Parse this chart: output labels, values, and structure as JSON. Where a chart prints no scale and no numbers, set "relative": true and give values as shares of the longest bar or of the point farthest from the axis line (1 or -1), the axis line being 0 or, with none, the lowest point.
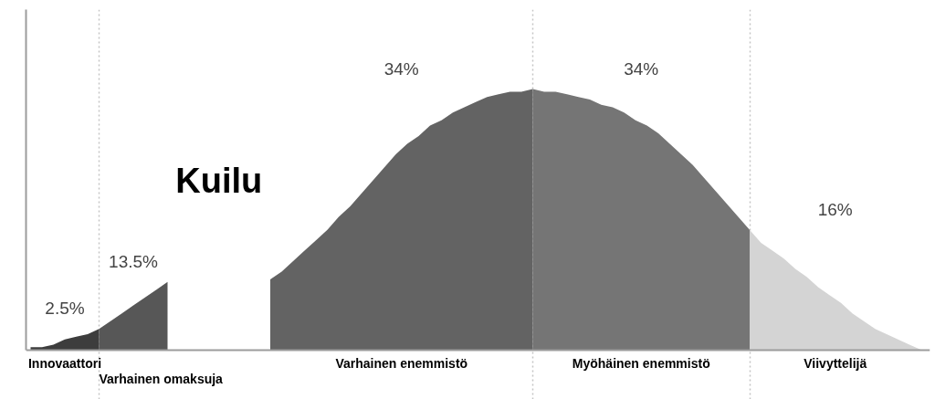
{
  "chart_data": {
    "type": "area",
    "relative": true,
    "grid": "x",
    "categories": [
      null,
      null,
      null,
      null,
      null,
      null,
      null,
      null,
      null,
      null,
      null,
      null,
      null,
      null,
      null,
      null,
      null,
      null,
      null,
      null,
      null,
      null,
      null,
      null,
      null,
      null,
      null,
      null,
      null,
      null,
      null,
      null,
      null,
      null,
      null,
      null,
      null,
      null,
      null,
      null,
      null,
      null,
      null,
      null,
      null,
      null,
      null,
      null,
      null,
      null,
      null,
      null,
      null,
      null,
      null,
      null,
      null,
      null,
      null,
      null,
      null,
      null,
      null,
      null,
      null,
      null,
      null,
      null,
      null,
      null,
      null,
      null,
      null,
      null,
      null,
      null,
      null,
      null,
      null
    ],
    "series": [
      {
        "name": "Innovaattori",
        "color": "#3d3d3d",
        "values": [
          0.01,
          0.01,
          0.02,
          0.04,
          0.05,
          0.06,
          0.08,
          null,
          null,
          null,
          null,
          null,
          null,
          null,
          null,
          null,
          null,
          null,
          null,
          null,
          null,
          null,
          null,
          null,
          null,
          null,
          null,
          null,
          null,
          null,
          null,
          null,
          null,
          null,
          null,
          null,
          null,
          null,
          null,
          null,
          null,
          null,
          null,
          null,
          null,
          null,
          null,
          null,
          null,
          null,
          null,
          null,
          null,
          null,
          null,
          null,
          null,
          null,
          null,
          null,
          null,
          null,
          null,
          null,
          null,
          null,
          null,
          null,
          null,
          null,
          null,
          null,
          null,
          null,
          null,
          null,
          null,
          null,
          null
        ]
      },
      {
        "name": "Varhainen omaksuja",
        "color": "#575757",
        "values": [
          null,
          null,
          null,
          null,
          null,
          null,
          0.08,
          0.11,
          0.14,
          0.17,
          0.2,
          0.23,
          0.26,
          null,
          null,
          null,
          null,
          null,
          null,
          null,
          null,
          null,
          null,
          null,
          null,
          null,
          null,
          null,
          null,
          null,
          null,
          null,
          null,
          null,
          null,
          null,
          null,
          null,
          null,
          null,
          null,
          null,
          null,
          null,
          null,
          null,
          null,
          null,
          null,
          null,
          null,
          null,
          null,
          null,
          null,
          null,
          null,
          null,
          null,
          null,
          null,
          null,
          null,
          null,
          null,
          null,
          null,
          null,
          null,
          null,
          null,
          null,
          null,
          null,
          null,
          null,
          null,
          null,
          null
        ]
      },
      {
        "name": "Varhainen enemmistö",
        "color": "#636363",
        "values": [
          null,
          null,
          null,
          null,
          null,
          null,
          null,
          null,
          null,
          null,
          null,
          null,
          null,
          null,
          null,
          null,
          null,
          null,
          null,
          null,
          null,
          0.27,
          0.3,
          0.34,
          0.38,
          0.42,
          0.46,
          0.51,
          0.55,
          0.6,
          0.65,
          0.7,
          0.75,
          0.79,
          0.82,
          0.86,
          0.88,
          0.91,
          0.93,
          0.95,
          0.97,
          0.98,
          0.99,
          0.99,
          1,
          null,
          null,
          null,
          null,
          null,
          null,
          null,
          null,
          null,
          null,
          null,
          null,
          null,
          null,
          null,
          null,
          null,
          null,
          null,
          null,
          null,
          null,
          null,
          null,
          null,
          null,
          null,
          null,
          null,
          null,
          null,
          null,
          null,
          null
        ]
      },
      {
        "name": "Myöhäinen enemmistö",
        "color": "#757575",
        "values": [
          null,
          null,
          null,
          null,
          null,
          null,
          null,
          null,
          null,
          null,
          null,
          null,
          null,
          null,
          null,
          null,
          null,
          null,
          null,
          null,
          null,
          null,
          null,
          null,
          null,
          null,
          null,
          null,
          null,
          null,
          null,
          null,
          null,
          null,
          null,
          null,
          null,
          null,
          null,
          null,
          null,
          null,
          null,
          null,
          1,
          0.99,
          0.99,
          0.98,
          0.97,
          0.96,
          0.94,
          0.93,
          0.91,
          0.88,
          0.86,
          0.83,
          0.79,
          0.75,
          0.71,
          0.66,
          0.61,
          0.56,
          0.51,
          0.46,
          null,
          null,
          null,
          null,
          null,
          null,
          null,
          null,
          null,
          null,
          null,
          null,
          null,
          null,
          null
        ]
      },
      {
        "name": "Viivyttelijä",
        "color": "#d4d4d4",
        "values": [
          null,
          null,
          null,
          null,
          null,
          null,
          null,
          null,
          null,
          null,
          null,
          null,
          null,
          null,
          null,
          null,
          null,
          null,
          null,
          null,
          null,
          null,
          null,
          null,
          null,
          null,
          null,
          null,
          null,
          null,
          null,
          null,
          null,
          null,
          null,
          null,
          null,
          null,
          null,
          null,
          null,
          null,
          null,
          null,
          null,
          null,
          null,
          null,
          null,
          null,
          null,
          null,
          null,
          null,
          null,
          null,
          null,
          null,
          null,
          null,
          null,
          null,
          null,
          0.46,
          0.41,
          0.38,
          0.35,
          0.31,
          0.28,
          0.24,
          0.21,
          0.18,
          0.14,
          0.11,
          0.08,
          0.06,
          0.04,
          0.02,
          0
        ]
      }
    ],
    "annotations": [
      "2.5%",
      "13.5%",
      "34%",
      "34%",
      "16%",
      "Kuilu"
    ]
  }
}
